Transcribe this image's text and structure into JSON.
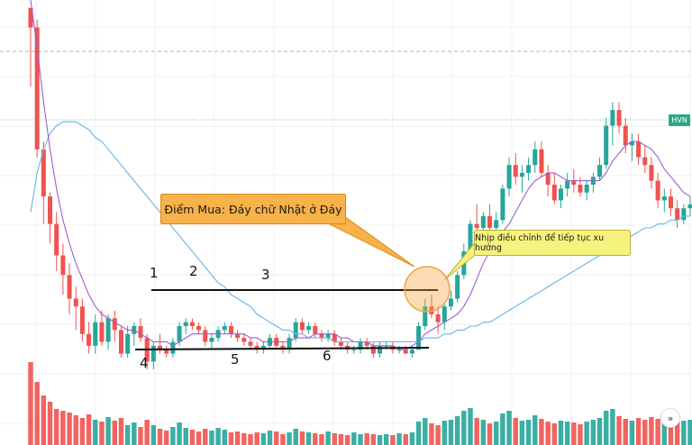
{
  "chart_data": {
    "type": "candlestick",
    "ticker_label": "HVN",
    "annotations": {
      "buy_point": "Điểm Mua: Đáy chữ Nhật ở Đáy",
      "pullback": "Nhịp điều chỉnh để tiếp tục xu hướng",
      "pivots": [
        "1",
        "2",
        "3",
        "4",
        "5",
        "6"
      ]
    },
    "colors": {
      "up": "#26a69a",
      "down": "#ef5350",
      "ma_fast": "#9c5fcf",
      "ma_slow": "#68b4e6",
      "callout_buy": "#f7b24a",
      "callout_pullback": "#f6f27e",
      "circle": "#f4a340"
    },
    "candles": [
      {
        "o": 100,
        "h": 100,
        "l": 80,
        "c": 95
      },
      {
        "o": 95,
        "h": 97,
        "l": 62,
        "c": 64
      },
      {
        "o": 64,
        "h": 66,
        "l": 45,
        "c": 52
      },
      {
        "o": 52,
        "h": 53,
        "l": 40,
        "c": 45
      },
      {
        "o": 45,
        "h": 48,
        "l": 33,
        "c": 37
      },
      {
        "o": 37,
        "h": 40,
        "l": 27,
        "c": 32
      },
      {
        "o": 32,
        "h": 35,
        "l": 22,
        "c": 26
      },
      {
        "o": 26,
        "h": 29,
        "l": 18,
        "c": 24
      },
      {
        "o": 24,
        "h": 26,
        "l": 15,
        "c": 17
      },
      {
        "o": 17,
        "h": 20,
        "l": 12,
        "c": 14
      },
      {
        "o": 14,
        "h": 22,
        "l": 12,
        "c": 20
      },
      {
        "o": 20,
        "h": 23,
        "l": 14,
        "c": 15
      },
      {
        "o": 15,
        "h": 22,
        "l": 13,
        "c": 21
      },
      {
        "o": 21,
        "h": 23,
        "l": 15,
        "c": 18
      },
      {
        "o": 18,
        "h": 19,
        "l": 11,
        "c": 12
      },
      {
        "o": 12,
        "h": 19,
        "l": 11,
        "c": 17
      },
      {
        "o": 17,
        "h": 20,
        "l": 14,
        "c": 19
      },
      {
        "o": 19,
        "h": 21,
        "l": 15,
        "c": 16
      },
      {
        "o": 16,
        "h": 17,
        "l": 8,
        "c": 10
      },
      {
        "o": 10,
        "h": 15,
        "l": 8,
        "c": 14
      },
      {
        "o": 14,
        "h": 17,
        "l": 12,
        "c": 13
      },
      {
        "o": 13,
        "h": 14,
        "l": 11,
        "c": 12
      },
      {
        "o": 12,
        "h": 16,
        "l": 11,
        "c": 15
      },
      {
        "o": 15,
        "h": 20,
        "l": 14,
        "c": 19
      },
      {
        "o": 19,
        "h": 21,
        "l": 17,
        "c": 20
      },
      {
        "o": 20,
        "h": 21,
        "l": 18,
        "c": 19
      },
      {
        "o": 19,
        "h": 20,
        "l": 17,
        "c": 18
      },
      {
        "o": 18,
        "h": 19,
        "l": 14,
        "c": 15
      },
      {
        "o": 15,
        "h": 17,
        "l": 13,
        "c": 16
      },
      {
        "o": 16,
        "h": 19,
        "l": 15,
        "c": 18
      },
      {
        "o": 18,
        "h": 20,
        "l": 17,
        "c": 19
      },
      {
        "o": 19,
        "h": 20,
        "l": 16,
        "c": 17
      },
      {
        "o": 17,
        "h": 18,
        "l": 15,
        "c": 16
      },
      {
        "o": 16,
        "h": 17,
        "l": 14,
        "c": 15
      },
      {
        "o": 15,
        "h": 16,
        "l": 13,
        "c": 14
      },
      {
        "o": 14,
        "h": 15,
        "l": 12,
        "c": 13
      },
      {
        "o": 13,
        "h": 15,
        "l": 12,
        "c": 14
      },
      {
        "o": 14,
        "h": 17,
        "l": 13,
        "c": 16
      },
      {
        "o": 16,
        "h": 17,
        "l": 13,
        "c": 14
      },
      {
        "o": 14,
        "h": 15,
        "l": 12,
        "c": 13
      },
      {
        "o": 13,
        "h": 17,
        "l": 12,
        "c": 16
      },
      {
        "o": 16,
        "h": 21,
        "l": 15,
        "c": 20
      },
      {
        "o": 20,
        "h": 21,
        "l": 17,
        "c": 18
      },
      {
        "o": 18,
        "h": 20,
        "l": 17,
        "c": 19
      },
      {
        "o": 19,
        "h": 20,
        "l": 16,
        "c": 17
      },
      {
        "o": 17,
        "h": 18,
        "l": 15,
        "c": 16
      },
      {
        "o": 16,
        "h": 18,
        "l": 15,
        "c": 17
      },
      {
        "o": 17,
        "h": 18,
        "l": 14,
        "c": 15
      },
      {
        "o": 15,
        "h": 16,
        "l": 13,
        "c": 14
      },
      {
        "o": 14,
        "h": 15,
        "l": 12,
        "c": 13
      },
      {
        "o": 13,
        "h": 14,
        "l": 12,
        "c": 13
      },
      {
        "o": 13,
        "h": 16,
        "l": 12,
        "c": 15
      },
      {
        "o": 15,
        "h": 16,
        "l": 13,
        "c": 14
      },
      {
        "o": 14,
        "h": 15,
        "l": 11,
        "c": 12
      },
      {
        "o": 12,
        "h": 15,
        "l": 11,
        "c": 14
      },
      {
        "o": 14,
        "h": 15,
        "l": 13,
        "c": 14
      },
      {
        "o": 14,
        "h": 15,
        "l": 12,
        "c": 13
      },
      {
        "o": 13,
        "h": 14,
        "l": 12,
        "c": 13
      },
      {
        "o": 13,
        "h": 14,
        "l": 12,
        "c": 12
      },
      {
        "o": 12,
        "h": 14,
        "l": 11,
        "c": 13
      },
      {
        "o": 13,
        "h": 20,
        "l": 13,
        "c": 19
      },
      {
        "o": 19,
        "h": 26,
        "l": 18,
        "c": 24
      },
      {
        "o": 24,
        "h": 27,
        "l": 21,
        "c": 22
      },
      {
        "o": 22,
        "h": 24,
        "l": 17,
        "c": 20
      },
      {
        "o": 20,
        "h": 25,
        "l": 18,
        "c": 24
      },
      {
        "o": 24,
        "h": 28,
        "l": 23,
        "c": 26
      },
      {
        "o": 26,
        "h": 33,
        "l": 25,
        "c": 32
      },
      {
        "o": 32,
        "h": 40,
        "l": 31,
        "c": 38
      },
      {
        "o": 38,
        "h": 46,
        "l": 36,
        "c": 45
      },
      {
        "o": 45,
        "h": 50,
        "l": 42,
        "c": 44
      },
      {
        "o": 44,
        "h": 48,
        "l": 41,
        "c": 47
      },
      {
        "o": 47,
        "h": 50,
        "l": 42,
        "c": 44
      },
      {
        "o": 44,
        "h": 48,
        "l": 42,
        "c": 46
      },
      {
        "o": 46,
        "h": 55,
        "l": 45,
        "c": 54
      },
      {
        "o": 54,
        "h": 62,
        "l": 52,
        "c": 60
      },
      {
        "o": 60,
        "h": 63,
        "l": 55,
        "c": 57
      },
      {
        "o": 57,
        "h": 60,
        "l": 53,
        "c": 58
      },
      {
        "o": 58,
        "h": 62,
        "l": 56,
        "c": 60
      },
      {
        "o": 60,
        "h": 66,
        "l": 58,
        "c": 64
      },
      {
        "o": 64,
        "h": 66,
        "l": 57,
        "c": 58
      },
      {
        "o": 58,
        "h": 60,
        "l": 52,
        "c": 55
      },
      {
        "o": 55,
        "h": 58,
        "l": 50,
        "c": 51
      },
      {
        "o": 51,
        "h": 55,
        "l": 49,
        "c": 54
      },
      {
        "o": 54,
        "h": 58,
        "l": 52,
        "c": 56
      },
      {
        "o": 56,
        "h": 59,
        "l": 53,
        "c": 55
      },
      {
        "o": 55,
        "h": 57,
        "l": 52,
        "c": 53
      },
      {
        "o": 53,
        "h": 56,
        "l": 51,
        "c": 55
      },
      {
        "o": 55,
        "h": 58,
        "l": 53,
        "c": 57
      },
      {
        "o": 57,
        "h": 62,
        "l": 56,
        "c": 60
      },
      {
        "o": 60,
        "h": 72,
        "l": 59,
        "c": 70
      },
      {
        "o": 70,
        "h": 76,
        "l": 65,
        "c": 74
      },
      {
        "o": 74,
        "h": 76,
        "l": 68,
        "c": 70
      },
      {
        "o": 70,
        "h": 72,
        "l": 63,
        "c": 65
      },
      {
        "o": 65,
        "h": 68,
        "l": 61,
        "c": 66
      },
      {
        "o": 66,
        "h": 68,
        "l": 60,
        "c": 62
      },
      {
        "o": 62,
        "h": 65,
        "l": 58,
        "c": 60
      },
      {
        "o": 60,
        "h": 62,
        "l": 54,
        "c": 56
      },
      {
        "o": 56,
        "h": 58,
        "l": 49,
        "c": 51
      },
      {
        "o": 51,
        "h": 54,
        "l": 48,
        "c": 52
      },
      {
        "o": 52,
        "h": 54,
        "l": 47,
        "c": 49
      },
      {
        "o": 49,
        "h": 51,
        "l": 44,
        "c": 46
      },
      {
        "o": 46,
        "h": 50,
        "l": 45,
        "c": 49
      },
      {
        "o": 49,
        "h": 52,
        "l": 47,
        "c": 50
      }
    ],
    "volume": [
      92,
      70,
      55,
      48,
      40,
      38,
      36,
      33,
      30,
      34,
      28,
      26,
      31,
      27,
      30,
      22,
      25,
      20,
      28,
      22,
      18,
      16,
      20,
      25,
      19,
      17,
      15,
      18,
      16,
      19,
      17,
      14,
      15,
      13,
      12,
      14,
      13,
      16,
      15,
      12,
      14,
      18,
      15,
      14,
      13,
      12,
      15,
      13,
      12,
      11,
      14,
      12,
      13,
      12,
      11,
      12,
      11,
      13,
      12,
      14,
      26,
      30,
      24,
      22,
      27,
      28,
      32,
      38,
      41,
      30,
      28,
      24,
      26,
      35,
      38,
      30,
      27,
      28,
      33,
      29,
      26,
      24,
      27,
      26,
      25,
      23,
      26,
      28,
      30,
      38,
      40,
      32,
      29,
      27,
      30,
      28,
      31,
      29,
      27,
      26,
      25,
      27,
      28
    ],
    "ma_fast": [
      102,
      90,
      76,
      64,
      54,
      46,
      40,
      35,
      31,
      27,
      24,
      22,
      21,
      20,
      19,
      18,
      18,
      17,
      16,
      15,
      15,
      15,
      14,
      15,
      16,
      17,
      17,
      17,
      17,
      17,
      17,
      17,
      17,
      17,
      16,
      16,
      15,
      15,
      15,
      15,
      15,
      16,
      16,
      16,
      17,
      17,
      17,
      17,
      16,
      16,
      15,
      15,
      15,
      14,
      14,
      14,
      14,
      13,
      13,
      14,
      15,
      17,
      18,
      19,
      20,
      21,
      22,
      24,
      27,
      31,
      35,
      38,
      41,
      43,
      45,
      48,
      51,
      54,
      56,
      57,
      58,
      58,
      57,
      56,
      56,
      56,
      56,
      56,
      56,
      58,
      61,
      63,
      65,
      66,
      66,
      65,
      64,
      62,
      59,
      57,
      55,
      53,
      52
    ],
    "ma_slow": [
      48,
      58,
      64,
      68,
      70,
      71,
      71,
      71,
      70,
      69,
      67,
      66,
      64,
      62,
      60,
      58,
      56,
      54,
      52,
      50,
      48,
      46,
      44,
      42,
      40,
      38,
      36,
      34,
      32,
      30,
      29,
      27,
      26,
      25,
      24,
      22,
      21,
      20,
      19,
      18,
      18,
      17,
      17,
      16,
      16,
      16,
      16,
      15,
      15,
      15,
      15,
      15,
      15,
      15,
      15,
      15,
      15,
      15,
      15,
      15,
      15,
      16,
      16,
      16,
      17,
      17,
      18,
      18,
      19,
      19,
      20,
      20,
      21,
      22,
      23,
      24,
      25,
      26,
      27,
      28,
      29,
      30,
      31,
      32,
      33,
      34,
      35,
      36,
      37,
      38,
      39,
      40,
      41,
      42,
      43,
      44,
      44,
      45,
      45,
      46,
      46,
      47,
      47
    ]
  }
}
